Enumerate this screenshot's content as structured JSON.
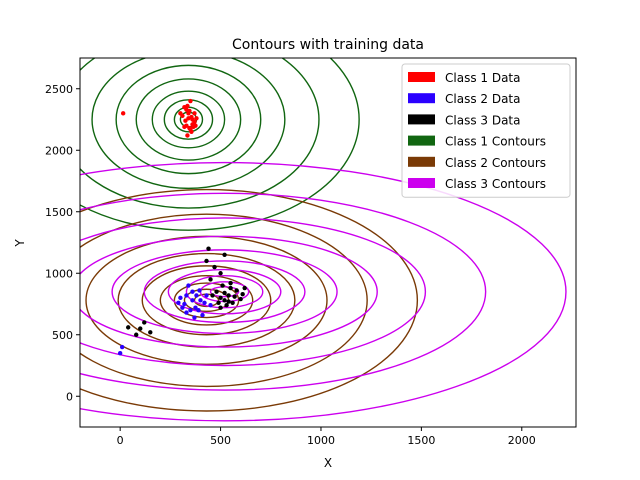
{
  "chart_data": {
    "type": "scatter",
    "title": "Contours with training data",
    "xlabel": "X",
    "ylabel": "Y",
    "xlim": [
      -200,
      2270
    ],
    "ylim": [
      -250,
      2750
    ],
    "xticks": [
      0,
      500,
      1000,
      1500,
      2000
    ],
    "yticks": [
      0,
      500,
      1000,
      1500,
      2000,
      2500
    ],
    "grid": false,
    "legend_position": "top-right",
    "legend": [
      {
        "label": "Class 1 Data",
        "color": "#ff0000"
      },
      {
        "label": "Class 2 Data",
        "color": "#2a00ff"
      },
      {
        "label": "Class 3 Data",
        "color": "#000000"
      },
      {
        "label": "Class 1 Contours",
        "color": "#116611"
      },
      {
        "label": "Class 2 Contours",
        "color": "#7a3a06"
      },
      {
        "label": "Class 3 Contours",
        "color": "#cc00ee"
      }
    ],
    "series": [
      {
        "name": "Class 1 Data",
        "color": "#ff0000",
        "points": [
          [
            320,
            2350
          ],
          [
            340,
            2300
          ],
          [
            360,
            2250
          ],
          [
            330,
            2200
          ],
          [
            350,
            2170
          ],
          [
            370,
            2230
          ],
          [
            310,
            2280
          ],
          [
            345,
            2320
          ],
          [
            355,
            2150
          ],
          [
            335,
            2120
          ],
          [
            365,
            2190
          ],
          [
            325,
            2240
          ],
          [
            380,
            2260
          ],
          [
            300,
            2300
          ],
          [
            350,
            2400
          ],
          [
            340,
            2260
          ],
          [
            360,
            2210
          ],
          [
            330,
            2330
          ],
          [
            345,
            2180
          ],
          [
            370,
            2300
          ],
          [
            320,
            2190
          ],
          [
            355,
            2270
          ],
          [
            335,
            2360
          ],
          [
            15,
            2300
          ],
          [
            375,
            2200
          ]
        ]
      },
      {
        "name": "Class 2 Data",
        "color": "#2a00ff",
        "points": [
          [
            300,
            800
          ],
          [
            320,
            750
          ],
          [
            350,
            700
          ],
          [
            380,
            820
          ],
          [
            400,
            780
          ],
          [
            330,
            680
          ],
          [
            360,
            850
          ],
          [
            420,
            760
          ],
          [
            310,
            720
          ],
          [
            370,
            640
          ],
          [
            390,
            700
          ],
          [
            340,
            900
          ],
          [
            430,
            820
          ],
          [
            290,
            760
          ],
          [
            410,
            660
          ],
          [
            450,
            740
          ],
          [
            360,
            780
          ],
          [
            330,
            820
          ],
          [
            395,
            860
          ],
          [
            375,
            720
          ],
          [
            0,
            350
          ],
          [
            10,
            400
          ]
        ]
      },
      {
        "name": "Class 3 Data",
        "color": "#000000",
        "points": [
          [
            480,
            850
          ],
          [
            500,
            800
          ],
          [
            520,
            780
          ],
          [
            540,
            820
          ],
          [
            560,
            760
          ],
          [
            510,
            900
          ],
          [
            530,
            740
          ],
          [
            550,
            880
          ],
          [
            490,
            760
          ],
          [
            570,
            810
          ],
          [
            600,
            790
          ],
          [
            460,
            820
          ],
          [
            520,
            840
          ],
          [
            540,
            770
          ],
          [
            580,
            860
          ],
          [
            500,
            720
          ],
          [
            550,
            920
          ],
          [
            470,
            1050
          ],
          [
            430,
            1100
          ],
          [
            520,
            1150
          ],
          [
            450,
            950
          ],
          [
            610,
            830
          ],
          [
            100,
            550
          ],
          [
            120,
            600
          ],
          [
            80,
            500
          ],
          [
            40,
            560
          ],
          [
            150,
            520
          ],
          [
            620,
            880
          ],
          [
            440,
            1200
          ],
          [
            500,
            1000
          ]
        ]
      }
    ],
    "contour_centers": [
      {
        "name": "Class 1 Contours",
        "center": [
          340,
          2250
        ]
      },
      {
        "name": "Class 2 Contours",
        "center": [
          430,
          780
        ]
      },
      {
        "name": "Class 3 Contours",
        "center": [
          520,
          850
        ]
      }
    ]
  }
}
